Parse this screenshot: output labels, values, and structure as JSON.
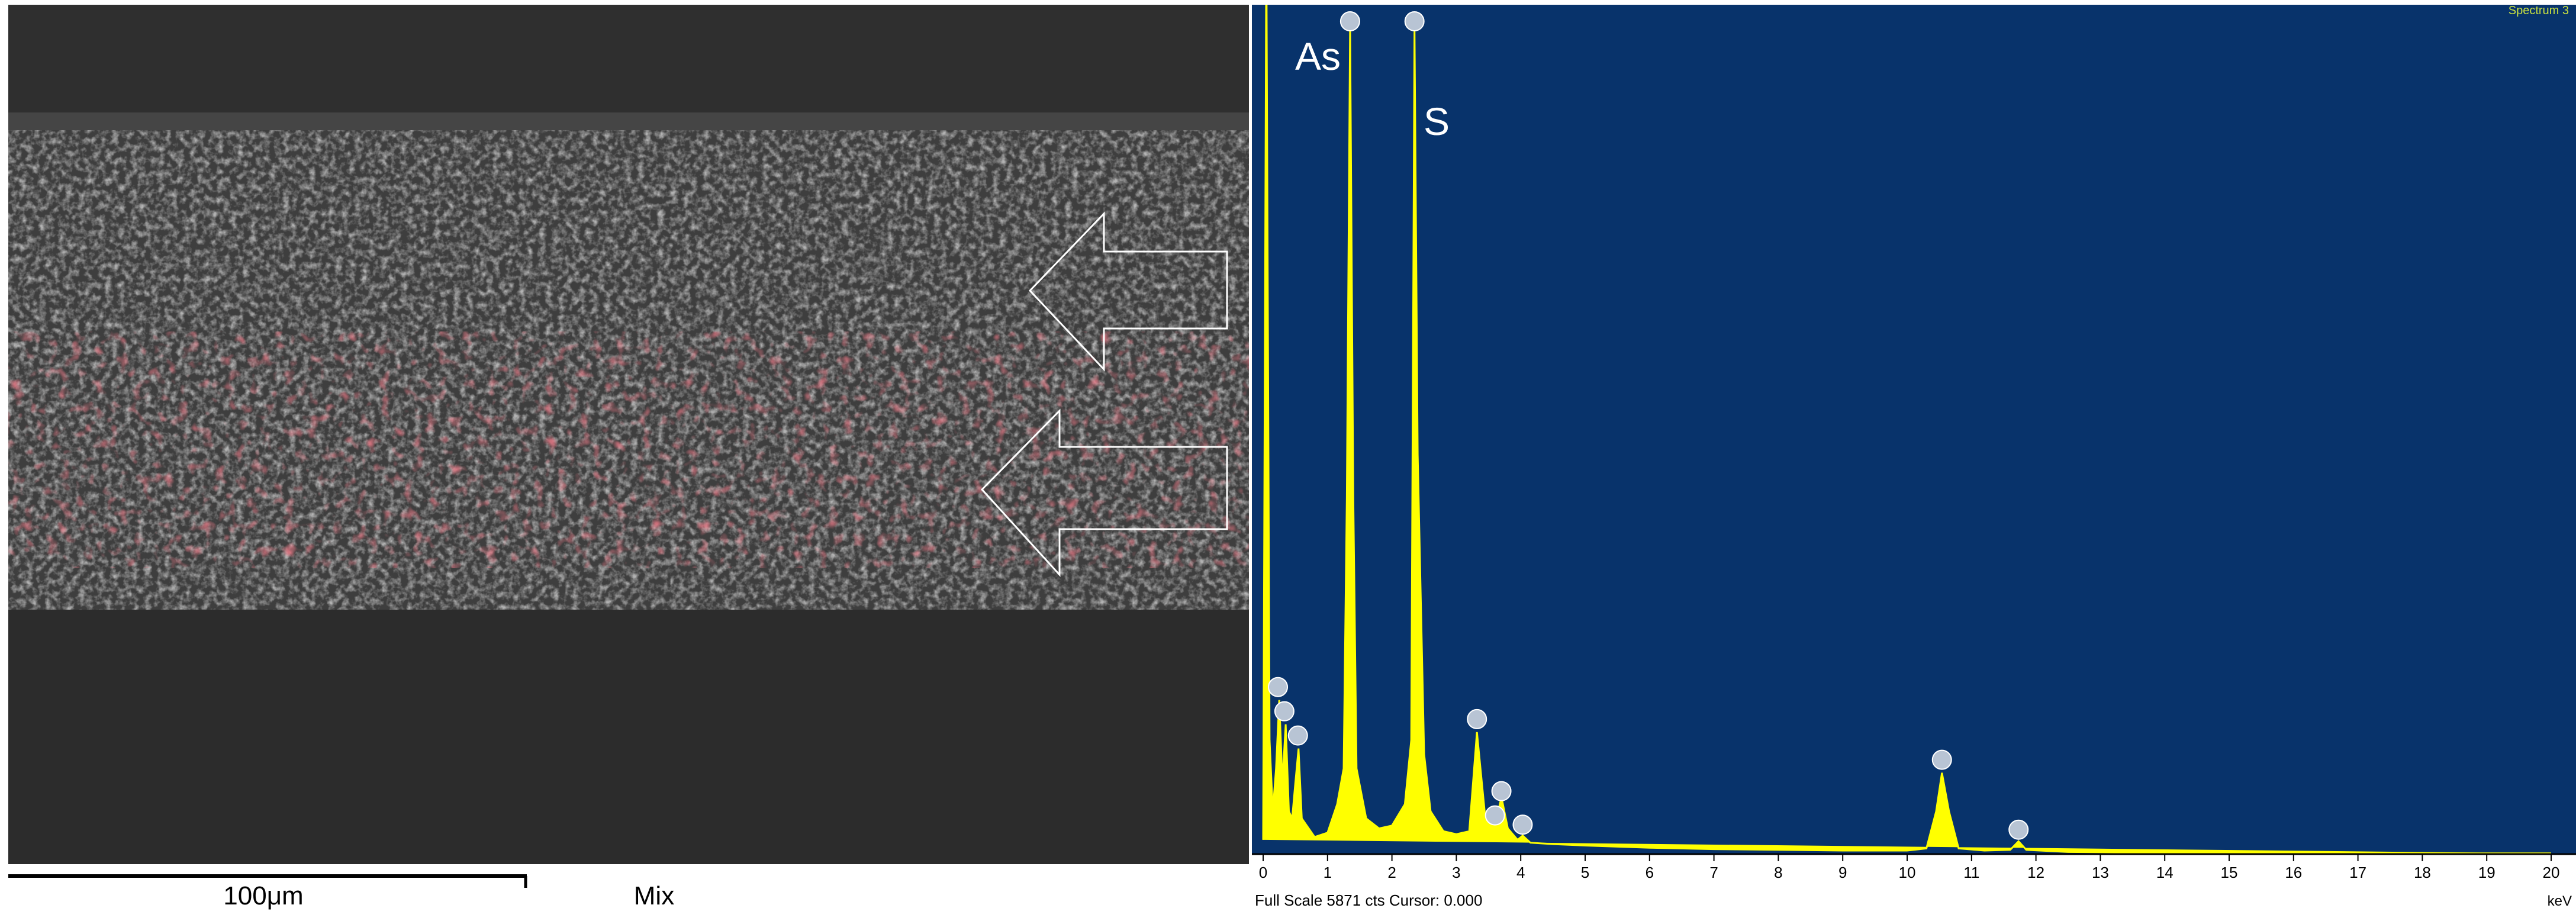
{
  "sem_image": {
    "scale_bar_label": "100μm",
    "mode_label": "Mix"
  },
  "chart_data": {
    "type": "area",
    "title": "Spectrum 3",
    "x_label": "keV",
    "footer": "Full Scale 5871 cts Cursor: 0.000",
    "annotations": [
      "As",
      "S"
    ],
    "background": "#08336b",
    "color": "#ffff00",
    "xlim": [
      0,
      20
    ],
    "xticks": [
      0,
      1,
      2,
      3,
      4,
      5,
      6,
      7,
      8,
      9,
      10,
      11,
      12,
      13,
      14,
      15,
      16,
      17,
      18,
      19,
      20
    ],
    "ylim": [
      0,
      5871
    ],
    "x": [
      0,
      0.05,
      0.1,
      0.15,
      0.2,
      0.25,
      0.3,
      0.35,
      0.4,
      0.45,
      0.5,
      0.55,
      0.6,
      0.8,
      1.0,
      1.15,
      1.25,
      1.3,
      1.35,
      1.4,
      1.45,
      1.6,
      1.8,
      2.0,
      2.2,
      2.3,
      2.35,
      2.4,
      2.5,
      2.6,
      2.8,
      3.0,
      3.2,
      3.32,
      3.45,
      3.6,
      3.7,
      3.8,
      3.95,
      4.03,
      4.15,
      4.5,
      5,
      6,
      7,
      8,
      9,
      10,
      10.3,
      10.45,
      10.54,
      10.65,
      10.8,
      11.2,
      11.6,
      11.73,
      11.85,
      12.5,
      14,
      16,
      18,
      20
    ],
    "values": [
      100,
      6400,
      800,
      300,
      600,
      1080,
      500,
      910,
      300,
      250,
      500,
      740,
      250,
      120,
      150,
      350,
      600,
      2500,
      5800,
      2500,
      600,
      250,
      180,
      200,
      350,
      800,
      5800,
      2800,
      700,
      300,
      160,
      140,
      160,
      855,
      250,
      200,
      400,
      180,
      100,
      130,
      80,
      70,
      60,
      45,
      35,
      30,
      25,
      25,
      40,
      300,
      570,
      300,
      40,
      25,
      30,
      90,
      30,
      15,
      10,
      8,
      5,
      5
    ]
  }
}
